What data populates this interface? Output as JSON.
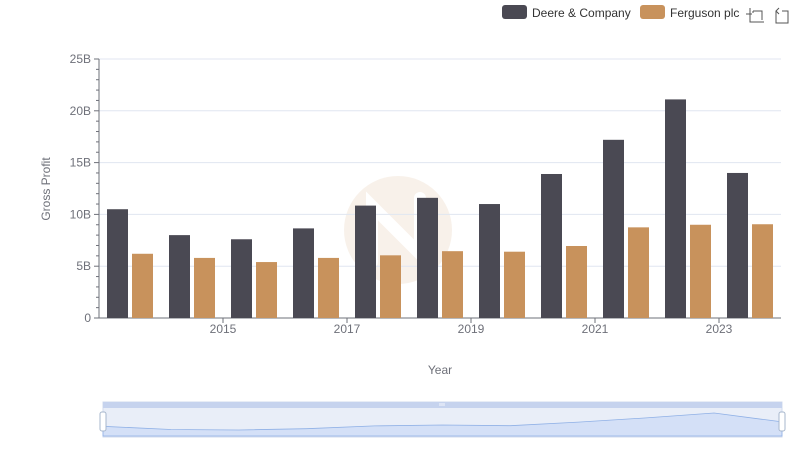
{
  "legend": {
    "items": [
      {
        "name": "Deere & Company",
        "color": "#4a4953"
      },
      {
        "name": "Ferguson plc",
        "color": "#c8925c"
      }
    ]
  },
  "toolbox": {
    "zoom_icon": "zoom-icon",
    "restore_icon": "restore-icon"
  },
  "chart_data": {
    "type": "bar",
    "x": [
      2014,
      2015,
      2016,
      2017,
      2018,
      2019,
      2020,
      2021,
      2022,
      2023,
      2024
    ],
    "xticks": [
      "2015",
      "2017",
      "2019",
      "2021",
      "2023"
    ],
    "xlabel": "Year",
    "ylabel": "Gross Profit",
    "ylim": [
      0,
      25000000000
    ],
    "yticks": [
      "0",
      "5B",
      "10B",
      "15B",
      "20B",
      "25B"
    ],
    "grid": true,
    "legend_position": "top-right",
    "series": [
      {
        "name": "Deere & Company",
        "color": "#4a4953",
        "values": [
          10500000000,
          8000000000,
          7600000000,
          8650000000,
          10850000000,
          11600000000,
          11000000000,
          13900000000,
          17200000000,
          21100000000,
          14000000000
        ]
      },
      {
        "name": "Ferguson plc",
        "color": "#c8925c",
        "values": [
          6200000000,
          5800000000,
          5400000000,
          5800000000,
          6050000000,
          6450000000,
          6400000000,
          6950000000,
          8750000000,
          9000000000,
          9050000000
        ]
      }
    ]
  }
}
